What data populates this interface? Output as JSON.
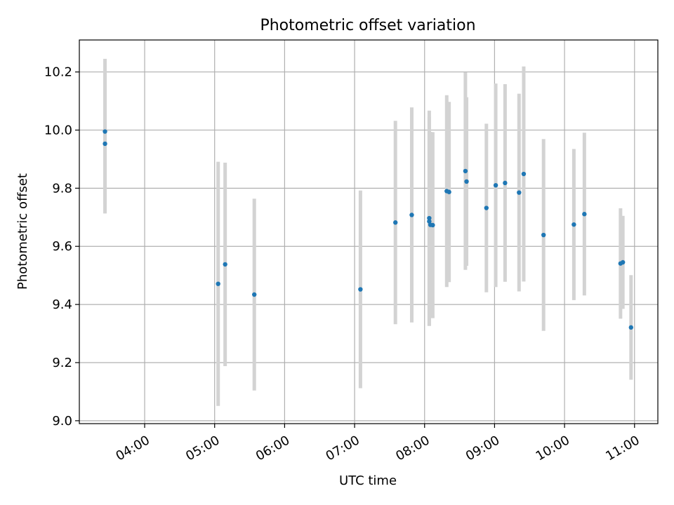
{
  "chart_data": {
    "type": "scatter",
    "title": "Photometric offset variation",
    "xlabel": "UTC time",
    "ylabel": "Photometric offset",
    "xlim": [
      "03:04",
      "11:20"
    ],
    "ylim": [
      8.99,
      10.31
    ],
    "x_ticks": [
      "04:00",
      "05:00",
      "06:00",
      "07:00",
      "08:00",
      "09:00",
      "10:00",
      "11:00"
    ],
    "y_ticks": [
      "9.0",
      "9.2",
      "9.4",
      "9.6",
      "9.8",
      "10.0",
      "10.2"
    ],
    "grid": true,
    "marker_color": "#1f77b4",
    "errorbar_color": "#d3d3d3",
    "series": [
      {
        "points": [
          {
            "t": "03:26",
            "y": 9.995,
            "err": 0.25
          },
          {
            "t": "03:26",
            "y": 9.953,
            "err": 0.24
          },
          {
            "t": "05:03",
            "y": 9.471,
            "err": 0.42
          },
          {
            "t": "05:09",
            "y": 9.538,
            "err": 0.35
          },
          {
            "t": "05:34",
            "y": 9.434,
            "err": 0.33
          },
          {
            "t": "07:05",
            "y": 9.452,
            "err": 0.34
          },
          {
            "t": "07:35",
            "y": 9.682,
            "err": 0.35
          },
          {
            "t": "07:49",
            "y": 9.708,
            "err": 0.37
          },
          {
            "t": "08:04",
            "y": 9.697,
            "err": 0.37
          },
          {
            "t": "08:04",
            "y": 9.686,
            "err": 0.36
          },
          {
            "t": "08:05",
            "y": 9.674,
            "err": 0.32
          },
          {
            "t": "08:07",
            "y": 9.673,
            "err": 0.32
          },
          {
            "t": "08:19",
            "y": 9.79,
            "err": 0.33
          },
          {
            "t": "08:21",
            "y": 9.787,
            "err": 0.31
          },
          {
            "t": "08:35",
            "y": 9.859,
            "err": 0.34
          },
          {
            "t": "08:36",
            "y": 9.823,
            "err": 0.29
          },
          {
            "t": "08:53",
            "y": 9.732,
            "err": 0.29
          },
          {
            "t": "09:01",
            "y": 9.81,
            "err": 0.35
          },
          {
            "t": "09:09",
            "y": 9.818,
            "err": 0.34
          },
          {
            "t": "09:21",
            "y": 9.785,
            "err": 0.34
          },
          {
            "t": "09:25",
            "y": 9.849,
            "err": 0.37
          },
          {
            "t": "09:42",
            "y": 9.639,
            "err": 0.33
          },
          {
            "t": "10:08",
            "y": 9.675,
            "err": 0.26
          },
          {
            "t": "10:17",
            "y": 9.711,
            "err": 0.28
          },
          {
            "t": "10:48",
            "y": 9.541,
            "err": 0.19
          },
          {
            "t": "10:50",
            "y": 9.545,
            "err": 0.16
          },
          {
            "t": "10:57",
            "y": 9.321,
            "err": 0.18
          }
        ]
      }
    ]
  }
}
